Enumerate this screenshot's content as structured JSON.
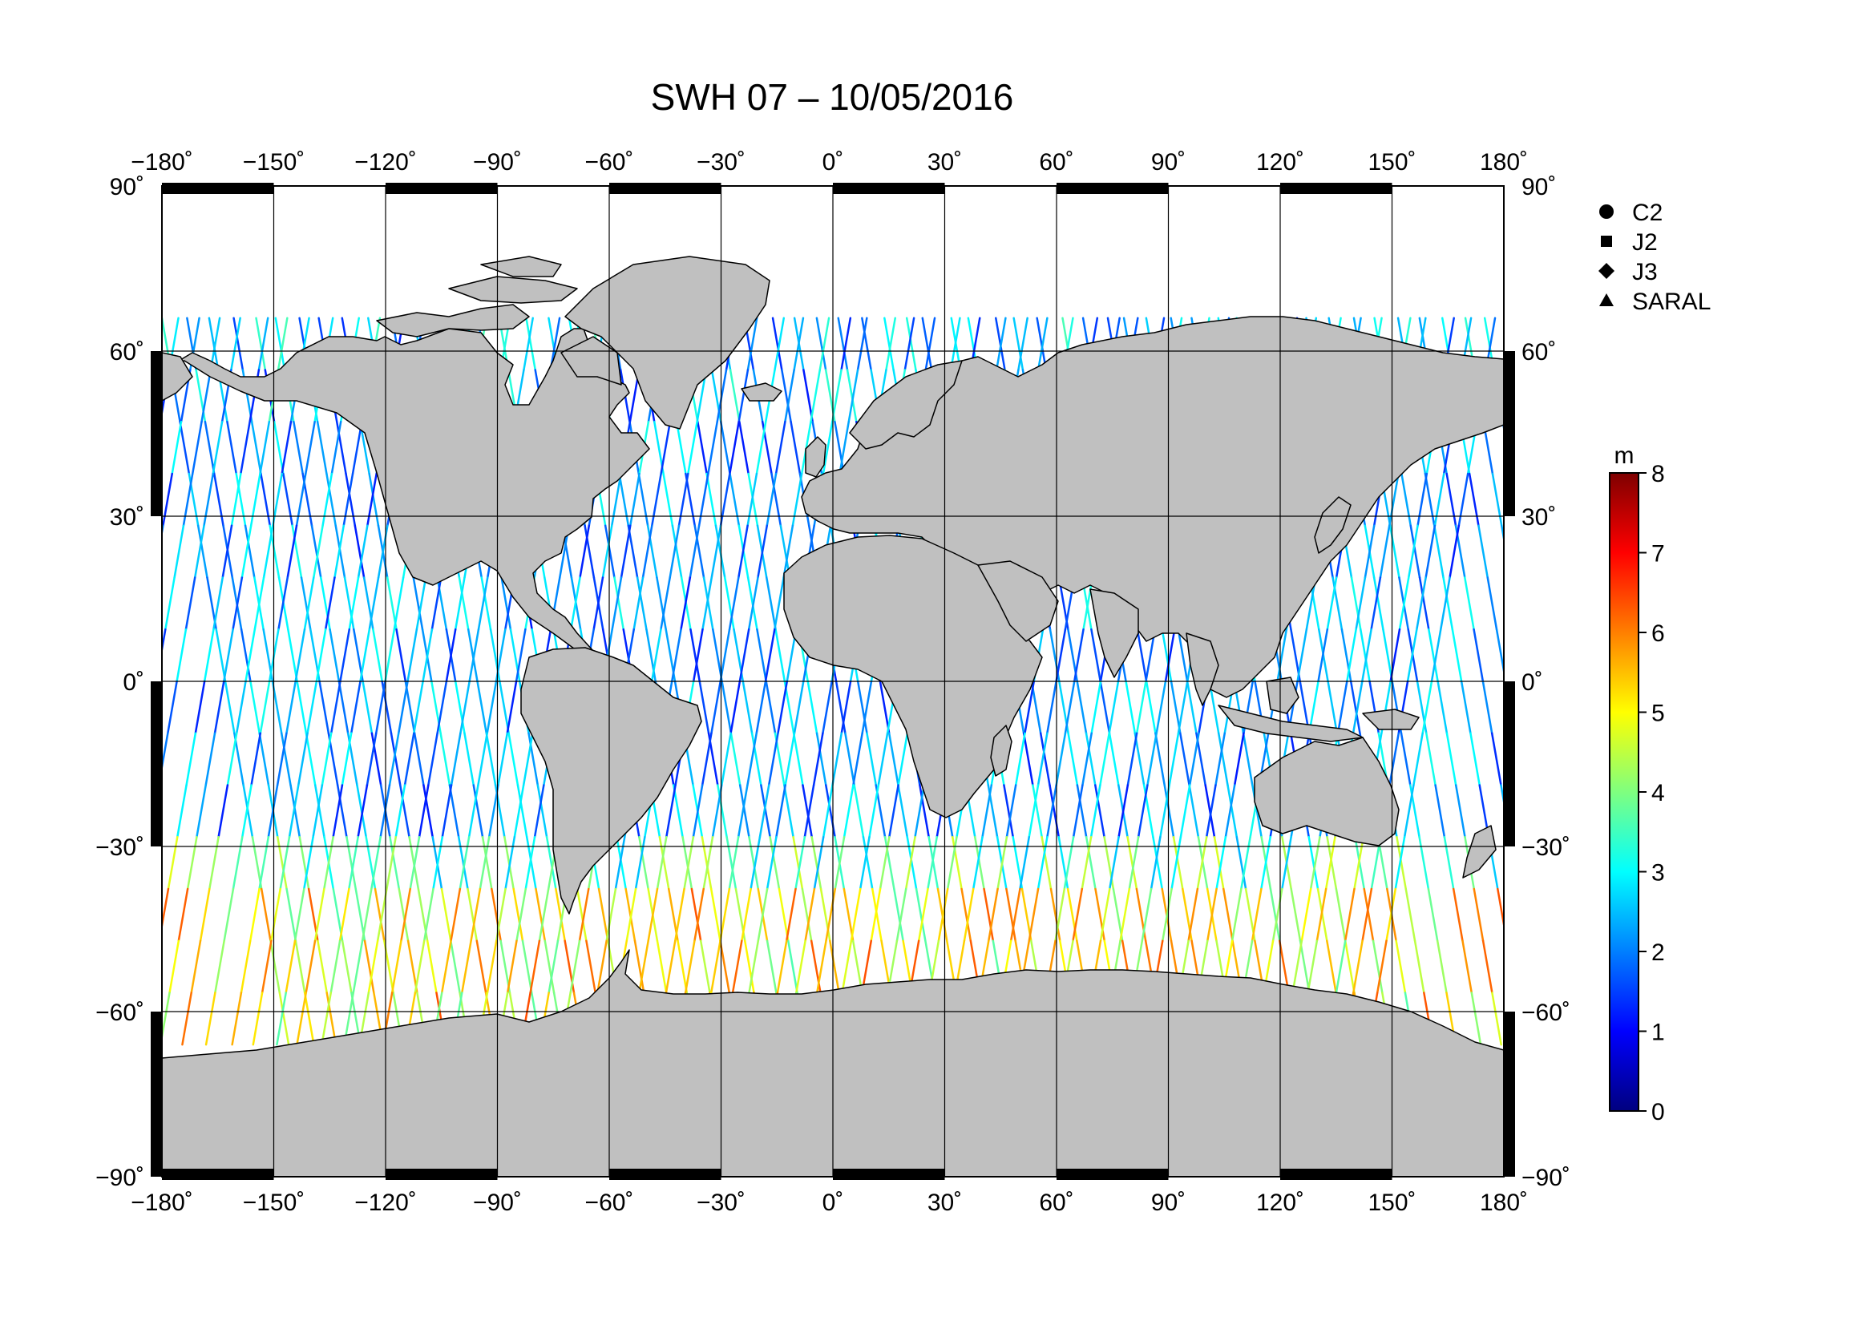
{
  "title": "SWH 07 – 10/05/2016",
  "lon_ticks": [
    "−180˚",
    "−150˚",
    "−120˚",
    "−90˚",
    "−60˚",
    "−30˚",
    "0˚",
    "30˚",
    "60˚",
    "90˚",
    "120˚",
    "150˚",
    "180˚"
  ],
  "lon_values": [
    -180,
    -150,
    -120,
    -90,
    -60,
    -30,
    0,
    30,
    60,
    90,
    120,
    150,
    180
  ],
  "lat_ticks": [
    "90˚",
    "60˚",
    "30˚",
    "0˚",
    "−30˚",
    "−60˚",
    "−90˚"
  ],
  "lat_values": [
    90,
    60,
    30,
    0,
    -30,
    -60,
    -90
  ],
  "legend": [
    {
      "label": "C2",
      "icon": "circle-icon"
    },
    {
      "label": "J2",
      "icon": "square-icon"
    },
    {
      "label": "J3",
      "icon": "diamond-icon"
    },
    {
      "label": "SARAL",
      "icon": "triangle-icon"
    }
  ],
  "colorbar": {
    "unit": "m",
    "ticks": [
      "0",
      "1",
      "2",
      "3",
      "4",
      "5",
      "6",
      "7",
      "8"
    ],
    "range": [
      0,
      8
    ],
    "colors": [
      "#00007f",
      "#0000ff",
      "#007fff",
      "#00ffff",
      "#7fff7f",
      "#ffff00",
      "#ff7f00",
      "#ff0000",
      "#7f0000"
    ]
  },
  "colors": {
    "land": "#c0c0c0",
    "ocean": "#ffffff",
    "coast": "#000000",
    "grid": "#000000"
  }
}
